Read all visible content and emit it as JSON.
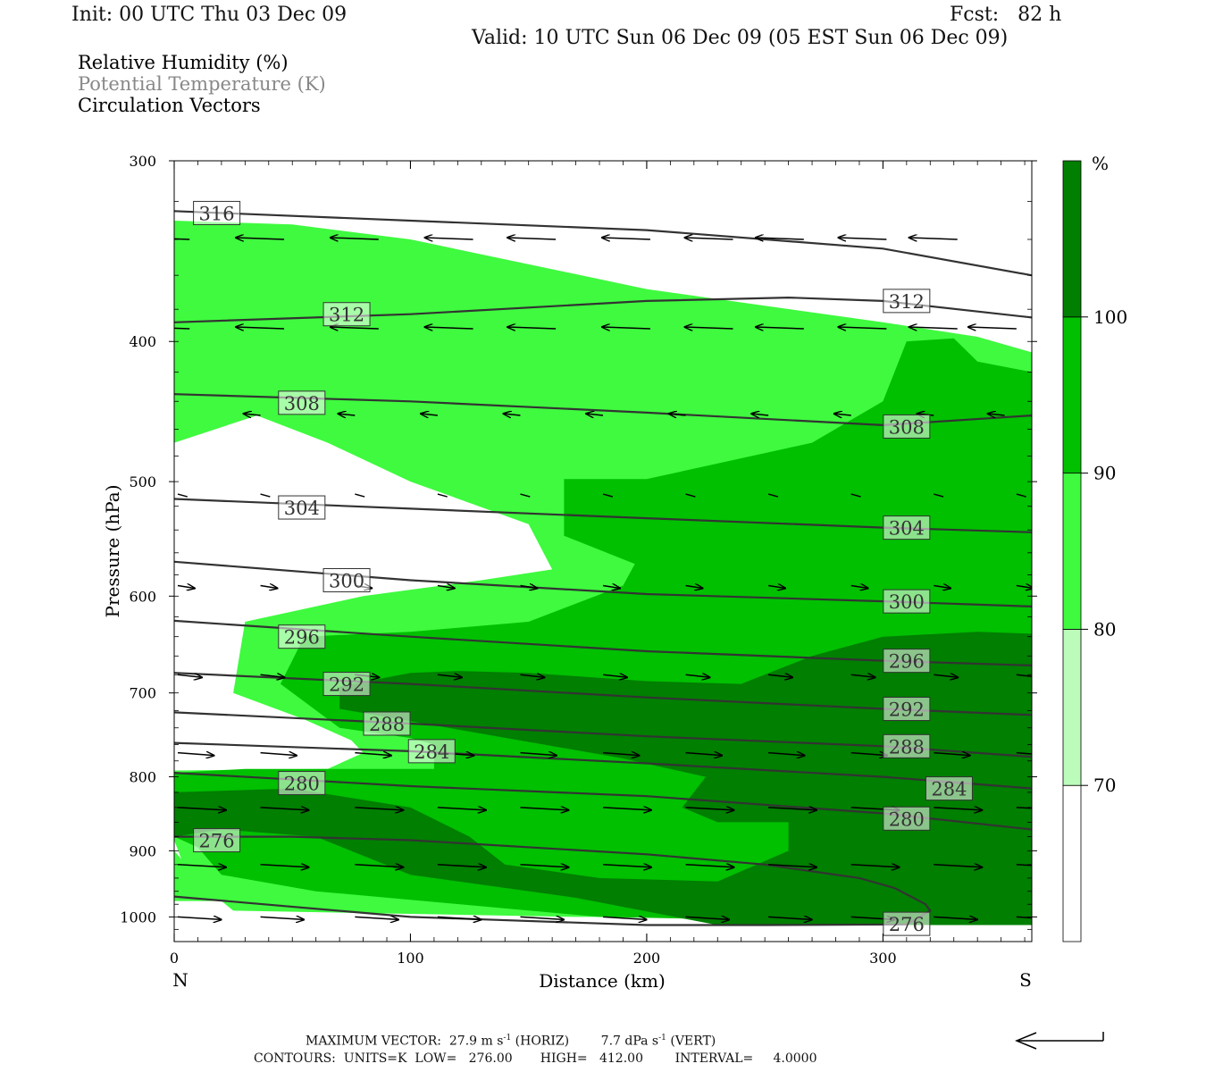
{
  "header": {
    "init": "Init: 00 UTC Thu 03 Dec 09",
    "fcst": "Fcst:   82 h",
    "valid": "Valid: 10 UTC Sun 06 Dec 09 (05 EST Sun 06 Dec 09)"
  },
  "variables": {
    "rh": "Relative Humidity (%)",
    "theta": "Potential Temperature (K)",
    "vectors": "Circulation Vectors"
  },
  "chart_data": {
    "type": "cross-section",
    "xlabel": "Distance (km)",
    "ylabel": "Pressure (hPa)",
    "xlim": [
      0,
      363
    ],
    "ylim": [
      1040,
      300
    ],
    "y_log": true,
    "x_ticks": [
      0,
      100,
      200,
      300
    ],
    "y_ticks": [
      300,
      400,
      500,
      600,
      700,
      800,
      900,
      1000
    ],
    "end_labels": {
      "left": "N",
      "right": "S"
    },
    "colorbar": {
      "unit": "%",
      "levels": [
        70,
        80,
        90,
        100
      ],
      "colors": [
        "#ffffff",
        "#bbfcbb",
        "#3ffa3f",
        "#00c000",
        "#007f00"
      ]
    },
    "rh_regions": [
      {
        "level": 80,
        "polygon": [
          [
            0,
            330
          ],
          [
            0,
            470
          ],
          [
            35,
            450
          ],
          [
            65,
            470
          ],
          [
            100,
            500
          ],
          [
            150,
            535
          ],
          [
            160,
            575
          ],
          [
            130,
            585
          ],
          [
            80,
            600
          ],
          [
            30,
            625
          ],
          [
            25,
            700
          ],
          [
            55,
            730
          ],
          [
            75,
            755
          ],
          [
            80,
            770
          ],
          [
            65,
            790
          ],
          [
            0,
            792
          ],
          [
            0,
            885
          ],
          [
            5,
            930
          ],
          [
            25,
            990
          ],
          [
            170,
            1000
          ],
          [
            363,
            1000
          ],
          [
            363,
            407
          ],
          [
            340,
            397
          ],
          [
            300,
            388
          ],
          [
            200,
            368
          ],
          [
            100,
            340
          ],
          [
            50,
            332
          ]
        ]
      },
      {
        "level": 80,
        "polygon": [
          [
            0,
            900
          ],
          [
            10,
            940
          ],
          [
            45,
            975
          ],
          [
            0,
            975
          ]
        ]
      },
      {
        "level": 90,
        "polygon": [
          [
            363,
            420
          ],
          [
            340,
            413
          ],
          [
            330,
            398
          ],
          [
            310,
            400
          ],
          [
            300,
            440
          ],
          [
            270,
            470
          ],
          [
            200,
            498
          ],
          [
            165,
            498
          ],
          [
            165,
            545
          ],
          [
            195,
            570
          ],
          [
            190,
            590
          ],
          [
            150,
            625
          ],
          [
            100,
            635
          ],
          [
            55,
            640
          ],
          [
            45,
            690
          ],
          [
            70,
            740
          ],
          [
            100,
            752
          ],
          [
            110,
            760
          ],
          [
            110,
            790
          ],
          [
            30,
            790
          ],
          [
            0,
            795
          ],
          [
            0,
            880
          ],
          [
            10,
            895
          ],
          [
            20,
            935
          ],
          [
            60,
            960
          ],
          [
            180,
            1000
          ],
          [
            363,
            1013
          ]
        ]
      },
      {
        "level": 100,
        "polygon": [
          [
            363,
            637
          ],
          [
            340,
            635
          ],
          [
            300,
            640
          ],
          [
            270,
            660
          ],
          [
            240,
            690
          ],
          [
            200,
            687
          ],
          [
            150,
            678
          ],
          [
            120,
            676
          ],
          [
            100,
            678
          ],
          [
            70,
            693
          ],
          [
            70,
            718
          ],
          [
            120,
            742
          ],
          [
            190,
            777
          ],
          [
            225,
            800
          ],
          [
            215,
            840
          ],
          [
            230,
            860
          ],
          [
            260,
            860
          ],
          [
            260,
            900
          ],
          [
            230,
            945
          ],
          [
            180,
            940
          ],
          [
            140,
            920
          ],
          [
            125,
            880
          ],
          [
            100,
            840
          ],
          [
            50,
            815
          ],
          [
            0,
            820
          ],
          [
            0,
            880
          ],
          [
            20,
            870
          ],
          [
            60,
            880
          ],
          [
            100,
            935
          ],
          [
            170,
            970
          ],
          [
            230,
            1013
          ],
          [
            363,
            1013
          ]
        ]
      }
    ],
    "theta_contours": [
      {
        "label": "276",
        "points": [
          [
            0,
            880
          ],
          [
            50,
            880
          ],
          [
            100,
            885
          ],
          [
            200,
            905
          ],
          [
            250,
            920
          ],
          [
            290,
            940
          ],
          [
            305,
            955
          ],
          [
            318,
            980
          ],
          [
            320,
            990
          ],
          [
            310,
            1012
          ],
          [
            250,
            1013
          ],
          [
            200,
            1013
          ],
          [
            100,
            1000
          ],
          [
            0,
            968
          ]
        ]
      },
      {
        "label": "280",
        "points": [
          [
            0,
            795
          ],
          [
            100,
            812
          ],
          [
            200,
            825
          ],
          [
            300,
            848
          ],
          [
            363,
            870
          ]
        ]
      },
      {
        "label": "284",
        "points": [
          [
            0,
            758
          ],
          [
            100,
            768
          ],
          [
            200,
            783
          ],
          [
            300,
            800
          ],
          [
            363,
            815
          ]
        ]
      },
      {
        "label": "288",
        "points": [
          [
            0,
            722
          ],
          [
            100,
            735
          ],
          [
            200,
            750
          ],
          [
            300,
            762
          ],
          [
            363,
            775
          ]
        ]
      },
      {
        "label": "292",
        "points": [
          [
            0,
            678
          ],
          [
            100,
            690
          ],
          [
            200,
            705
          ],
          [
            300,
            718
          ],
          [
            363,
            725
          ]
        ]
      },
      {
        "label": "296",
        "points": [
          [
            0,
            624
          ],
          [
            100,
            640
          ],
          [
            200,
            655
          ],
          [
            300,
            665
          ],
          [
            363,
            670
          ]
        ]
      },
      {
        "label": "300",
        "points": [
          [
            0,
            568
          ],
          [
            100,
            585
          ],
          [
            200,
            598
          ],
          [
            300,
            605
          ],
          [
            363,
            610
          ]
        ]
      },
      {
        "label": "304",
        "points": [
          [
            0,
            514
          ],
          [
            100,
            522
          ],
          [
            200,
            530
          ],
          [
            300,
            538
          ],
          [
            363,
            542
          ]
        ]
      },
      {
        "label": "308",
        "points": [
          [
            0,
            435
          ],
          [
            100,
            440
          ],
          [
            200,
            448
          ],
          [
            300,
            457
          ],
          [
            363,
            450
          ]
        ]
      },
      {
        "label": "312",
        "points": [
          [
            0,
            388
          ],
          [
            100,
            383
          ],
          [
            200,
            375
          ],
          [
            260,
            373
          ],
          [
            300,
            375
          ],
          [
            363,
            385
          ]
        ]
      },
      {
        "label": "316",
        "points": [
          [
            0,
            325
          ],
          [
            100,
            330
          ],
          [
            200,
            335
          ],
          [
            300,
            345
          ],
          [
            363,
            360
          ]
        ]
      }
    ],
    "theta_label_positions": [
      {
        "label": "316",
        "x": 18,
        "p": 326
      },
      {
        "label": "312",
        "x": 73,
        "p": 383
      },
      {
        "label": "312",
        "x": 310,
        "p": 375
      },
      {
        "label": "308",
        "x": 54,
        "p": 441
      },
      {
        "label": "308",
        "x": 310,
        "p": 458
      },
      {
        "label": "304",
        "x": 54,
        "p": 521
      },
      {
        "label": "304",
        "x": 310,
        "p": 538
      },
      {
        "label": "300",
        "x": 73,
        "p": 585
      },
      {
        "label": "300",
        "x": 310,
        "p": 605
      },
      {
        "label": "296",
        "x": 54,
        "p": 640
      },
      {
        "label": "296",
        "x": 310,
        "p": 665
      },
      {
        "label": "292",
        "x": 73,
        "p": 690
      },
      {
        "label": "292",
        "x": 310,
        "p": 718
      },
      {
        "label": "288",
        "x": 90,
        "p": 735
      },
      {
        "label": "288",
        "x": 310,
        "p": 762
      },
      {
        "label": "284",
        "x": 109,
        "p": 768
      },
      {
        "label": "284",
        "x": 328,
        "p": 815
      },
      {
        "label": "280",
        "x": 54,
        "p": 808
      },
      {
        "label": "280",
        "x": 310,
        "p": 855
      },
      {
        "label": "276",
        "x": 18,
        "p": 885
      },
      {
        "label": "276",
        "x": 310,
        "p": 1011
      }
    ],
    "vectors": [
      {
        "p": 340,
        "speed": -1.0,
        "xs": [
          5,
          45,
          85,
          125,
          160,
          200,
          235,
          265,
          300,
          330
        ]
      },
      {
        "p": 392,
        "speed": -1.0,
        "xs": [
          5,
          45,
          85,
          125,
          160,
          200,
          235,
          265,
          300,
          330,
          355
        ]
      },
      {
        "p": 450,
        "speed": -0.35,
        "xs": [
          35,
          75,
          110,
          145,
          180,
          215,
          250,
          285,
          320,
          350
        ]
      },
      {
        "p": 510,
        "speed": 0.2,
        "xs": [
          0,
          35,
          75,
          110,
          145,
          180,
          215,
          250,
          285,
          320,
          355
        ]
      },
      {
        "p": 590,
        "speed": 0.35,
        "xs": [
          0,
          35,
          75,
          110,
          145,
          180,
          215,
          250,
          285,
          320,
          355
        ]
      },
      {
        "p": 680,
        "speed": 0.5,
        "xs": [
          0,
          35,
          75,
          110,
          145,
          180,
          215,
          250,
          285,
          320,
          355
        ]
      },
      {
        "p": 770,
        "speed": 0.75,
        "xs": [
          0,
          35,
          75,
          110,
          145,
          180,
          215,
          250,
          285,
          320,
          355
        ]
      },
      {
        "p": 840,
        "speed": 1.0,
        "xs": [
          0,
          35,
          75,
          110,
          145,
          180,
          215,
          250,
          285,
          320,
          355
        ]
      },
      {
        "p": 920,
        "speed": 1.0,
        "xs": [
          0,
          35,
          75,
          110,
          145,
          180,
          215,
          250,
          285,
          320,
          355
        ]
      },
      {
        "p": 1000,
        "speed": 0.9,
        "xs": [
          0,
          35,
          75,
          110,
          145,
          180,
          215,
          250,
          285,
          320,
          355
        ]
      }
    ]
  },
  "footer": {
    "max_vector_prefix": "MAXIMUM VECTOR:  27.9 m s",
    "horiz_suffix": " (HORIZ)",
    "vert_prefix": "7.7 dPa s",
    "vert_suffix": " (VERT)",
    "exponent": "-1",
    "contours": "CONTOURS:  UNITS=K  LOW=   276.00       HIGH=   412.00        INTERVAL=     4.0000"
  }
}
